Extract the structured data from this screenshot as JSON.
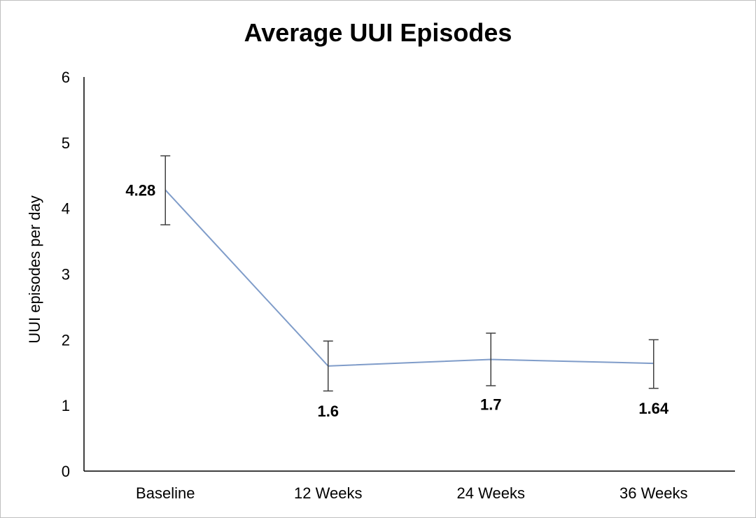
{
  "chart_data": {
    "type": "line",
    "title": "Average UUI Episodes",
    "xlabel": "",
    "ylabel": "UUI episodes per day",
    "categories": [
      "Baseline",
      "12 Weeks",
      "24 Weeks",
      "36 Weeks"
    ],
    "series": [
      {
        "values": [
          4.28,
          1.6,
          1.7,
          1.64
        ],
        "error_upper": [
          4.8,
          1.98,
          2.1,
          2.0
        ],
        "error_lower": [
          3.75,
          1.22,
          1.3,
          1.26
        ],
        "color": "#7f9cc9"
      }
    ],
    "data_labels": [
      "4.28",
      "1.6",
      "1.7",
      "1.64"
    ],
    "ylim": [
      0,
      6
    ],
    "yticks": [
      "0",
      "1",
      "2",
      "3",
      "4",
      "5",
      "6"
    ],
    "grid": false,
    "legend": "none"
  }
}
